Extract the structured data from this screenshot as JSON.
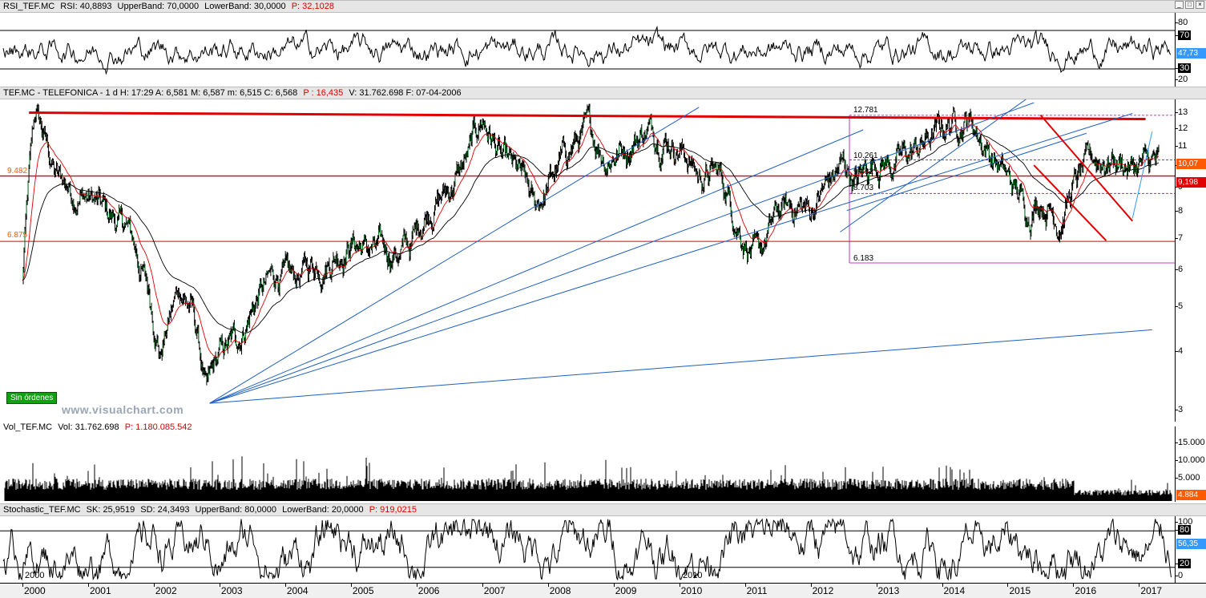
{
  "rsi_panel": {
    "title": "RSI_TEF.MC",
    "rsi_text": "RSI: 40,8893",
    "upper_text": "UpperBand: 70,0000",
    "lower_text": "LowerBand: 30,0000",
    "p_text": "P: 32,1028",
    "ticks": [
      "80",
      "70",
      "30",
      "20"
    ],
    "current_tag": "47,73"
  },
  "price_panel": {
    "header": "TEF.MC - TELEFONICA -  1 d  H: 17:29  A: 6,581  M: 6,587  m: 6,515  C: 6,568",
    "p_text": "P : 16,435",
    "v_text": "V: 31.762.698  F: 07-04-2006",
    "ticks": [
      "13",
      "12",
      "11",
      "10",
      "9",
      "8",
      "7",
      "6",
      "5",
      "4",
      "3"
    ],
    "last_tag": "10,07",
    "level_tag": "9,198",
    "levels": {
      "fib_top": "12.781",
      "fib_a": "10.261",
      "fib_b": "9.482",
      "fib_c": "8.703",
      "fib_low": "6.183",
      "left_a": "9.482",
      "left_b": "6.875"
    },
    "badge": "Sin órdenes",
    "watermark": "www.visualchart.com"
  },
  "vol_panel": {
    "title": "Vol_TEF.MC",
    "vol_text": "Vol: 31.762.698",
    "p_text": "P: 1.180.085.542",
    "ticks": [
      "15.000",
      "10.000",
      "5.000",
      "0"
    ],
    "current_tag": "4.884"
  },
  "stoch_panel": {
    "title": "Stochastic_TEF.MC",
    "sk_text": "SK: 25,9519",
    "sd_text": "SD: 24,3493",
    "upper_text": "UpperBand: 80,0000",
    "lower_text": "LowerBand: 20,0000",
    "p_text": "P: 919,0215",
    "ticks": [
      "100",
      "80",
      "20",
      "0"
    ],
    "current_tag": "56,35"
  },
  "x_axis": {
    "years": [
      "2000",
      "2001",
      "2002",
      "2003",
      "2004",
      "2005",
      "2006",
      "2007",
      "2008",
      "2009",
      "2010",
      "2011",
      "2012",
      "2013",
      "2014",
      "2015",
      "2016",
      "2017"
    ],
    "marker_2000": "2000",
    "marker_2010": "2010"
  },
  "colors": {
    "price": "#000000",
    "ema_fast": "#e00000",
    "ema_slow": "#000000",
    "trend": "#1f5fbf",
    "resistance": "#e00000",
    "fib": "#b000b0",
    "tag_orange": "#ff5a00",
    "tag_blue": "#3399ff"
  },
  "chart_data": {
    "type": "line",
    "title": "TEF.MC - TELEFONICA",
    "xlabel": "",
    "ylabel": "",
    "log_scale": true,
    "ylim": [
      2.9,
      13.5
    ],
    "x": [
      2000.0,
      2000.2,
      2000.5,
      2000.8,
      2001.0,
      2001.3,
      2001.6,
      2001.9,
      2002.1,
      2002.4,
      2002.6,
      2002.8,
      2003.0,
      2003.3,
      2003.6,
      2003.9,
      2004.1,
      2004.4,
      2004.7,
      2005.0,
      2005.3,
      2005.6,
      2005.9,
      2006.2,
      2006.5,
      2006.8,
      2007.0,
      2007.3,
      2007.6,
      2007.8,
      2008.0,
      2008.3,
      2008.6,
      2008.9,
      2009.2,
      2009.5,
      2009.8,
      2010.0,
      2010.3,
      2010.6,
      2010.9,
      2011.2,
      2011.5,
      2011.8,
      2012.0,
      2012.3,
      2012.5,
      2012.7,
      2013.0,
      2013.3,
      2013.6,
      2013.9,
      2014.1,
      2014.4,
      2014.7,
      2015.0,
      2015.3,
      2015.5,
      2015.8,
      2016.0,
      2016.3,
      2016.6,
      2016.9,
      2017.1,
      2017.3
    ],
    "series": [
      {
        "name": "TEF.MC",
        "values": [
          5.6,
          12.9,
          9.5,
          8.8,
          8.6,
          7.8,
          7.3,
          5.5,
          4.0,
          5.5,
          4.8,
          3.2,
          3.9,
          4.3,
          5.3,
          5.9,
          5.6,
          6.1,
          6.4,
          6.9,
          6.6,
          6.5,
          6.7,
          8.2,
          8.9,
          10.5,
          12.6,
          10.2,
          9.3,
          8.0,
          9.0,
          10.7,
          11.8,
          10.5,
          11.0,
          12.0,
          11.6,
          11.0,
          9.5,
          9.6,
          7.5,
          6.2,
          7.9,
          8.2,
          8.0,
          9.3,
          10.0,
          9.2,
          10.4,
          10.1,
          10.8,
          11.6,
          12.3,
          12.7,
          10.8,
          9.3,
          8.0,
          8.6,
          7.7,
          9.0,
          10.2,
          10.4,
          9.9,
          10.07,
          10.07
        ]
      }
    ],
    "annotations": [
      "12.781",
      "10.261",
      "9.482",
      "8.703",
      "6.183",
      "6.875"
    ]
  }
}
